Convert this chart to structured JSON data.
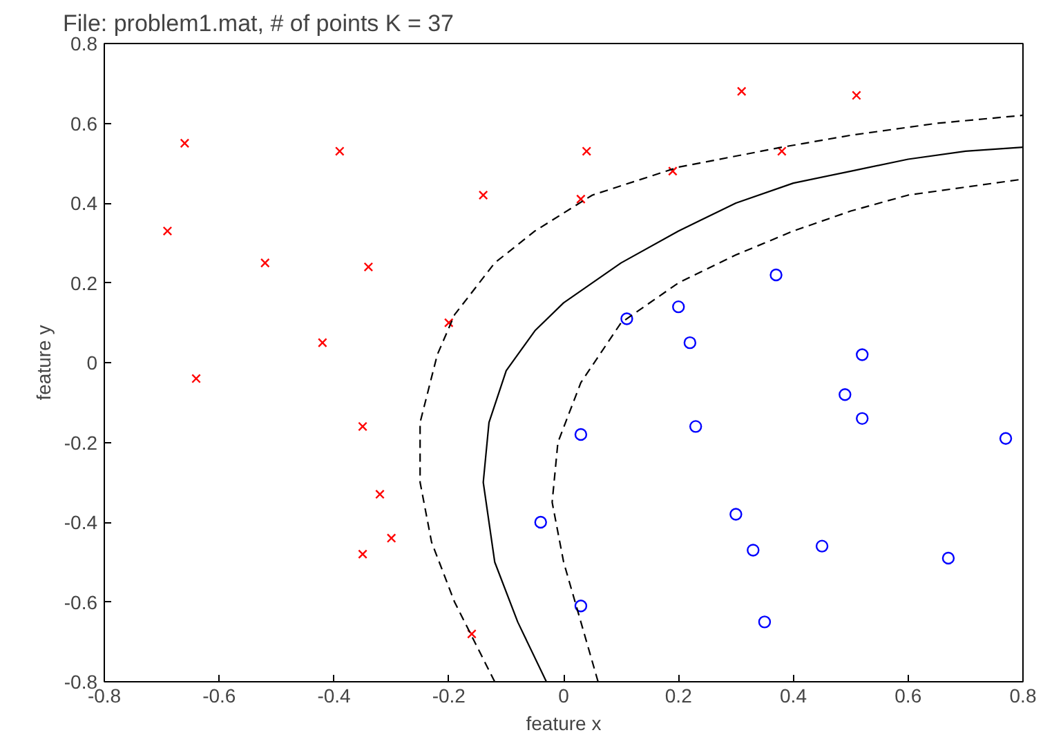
{
  "chart_data": {
    "type": "scatter",
    "title": "File: problem1.mat, # of points K = 37",
    "xlabel": "feature x",
    "ylabel": "feature y",
    "xlim": [
      -0.8,
      0.8
    ],
    "ylim": [
      -0.8,
      0.8
    ],
    "xticks": [
      -0.8,
      -0.6,
      -0.4,
      -0.2,
      0,
      0.2,
      0.4,
      0.6,
      0.8
    ],
    "yticks": [
      -0.8,
      -0.6,
      -0.4,
      -0.2,
      0,
      0.2,
      0.4,
      0.6,
      0.8
    ],
    "grid": false,
    "series": [
      {
        "marker": "cross",
        "color": "#ff0000",
        "x": [
          -0.69,
          -0.66,
          -0.52,
          -0.64,
          -0.42,
          -0.39,
          -0.34,
          -0.14,
          -0.35,
          -0.32,
          -0.3,
          -0.35,
          0.03,
          0.04,
          0.19,
          0.31,
          0.51,
          0.38,
          -0.2,
          -0.16
        ],
        "values": [
          0.33,
          0.55,
          0.25,
          -0.04,
          0.05,
          0.53,
          0.24,
          0.42,
          -0.16,
          -0.33,
          -0.44,
          -0.48,
          0.41,
          0.53,
          0.48,
          0.68,
          0.67,
          0.53,
          0.1,
          -0.68
        ]
      },
      {
        "type": "scatter",
        "marker": "circle",
        "color": "#0000ff",
        "x": [
          0.11,
          0.2,
          0.22,
          0.37,
          0.52,
          0.49,
          0.52,
          0.77,
          0.03,
          0.23,
          -0.04,
          0.3,
          0.33,
          0.45,
          0.67,
          0.03,
          0.35
        ],
        "values": [
          0.11,
          0.14,
          0.05,
          0.22,
          0.02,
          -0.08,
          -0.14,
          -0.19,
          -0.18,
          -0.16,
          -0.4,
          -0.38,
          -0.47,
          -0.46,
          -0.49,
          -0.61,
          -0.65
        ]
      },
      {
        "type": "line",
        "line_style": "solid",
        "color": "#000000",
        "x": [
          -0.03,
          -0.08,
          -0.12,
          -0.14,
          -0.13,
          -0.1,
          -0.05,
          0.0,
          0.1,
          0.2,
          0.3,
          0.4,
          0.5,
          0.6,
          0.7,
          0.8
        ],
        "values": [
          -0.8,
          -0.65,
          -0.5,
          -0.3,
          -0.15,
          -0.02,
          0.08,
          0.15,
          0.25,
          0.33,
          0.4,
          0.45,
          0.48,
          0.51,
          0.53,
          0.54
        ]
      },
      {
        "type": "line",
        "line_style": "dashed",
        "color": "#000000",
        "x": [
          -0.12,
          -0.19,
          -0.23,
          -0.25,
          -0.25,
          -0.22,
          -0.19,
          -0.12,
          -0.05,
          0.05,
          0.2,
          0.38,
          0.5,
          0.65,
          0.8
        ],
        "values": [
          -0.8,
          -0.6,
          -0.45,
          -0.3,
          -0.15,
          0.02,
          0.12,
          0.25,
          0.33,
          0.42,
          0.49,
          0.54,
          0.57,
          0.6,
          0.62
        ]
      },
      {
        "type": "line",
        "line_style": "dashed",
        "color": "#000000",
        "x": [
          0.06,
          0.03,
          0.0,
          -0.02,
          -0.01,
          0.03,
          0.1,
          0.2,
          0.3,
          0.4,
          0.5,
          0.6,
          0.7,
          0.8
        ],
        "values": [
          -0.8,
          -0.65,
          -0.5,
          -0.35,
          -0.2,
          -0.05,
          0.1,
          0.2,
          0.27,
          0.33,
          0.38,
          0.42,
          0.44,
          0.46
        ]
      }
    ]
  }
}
